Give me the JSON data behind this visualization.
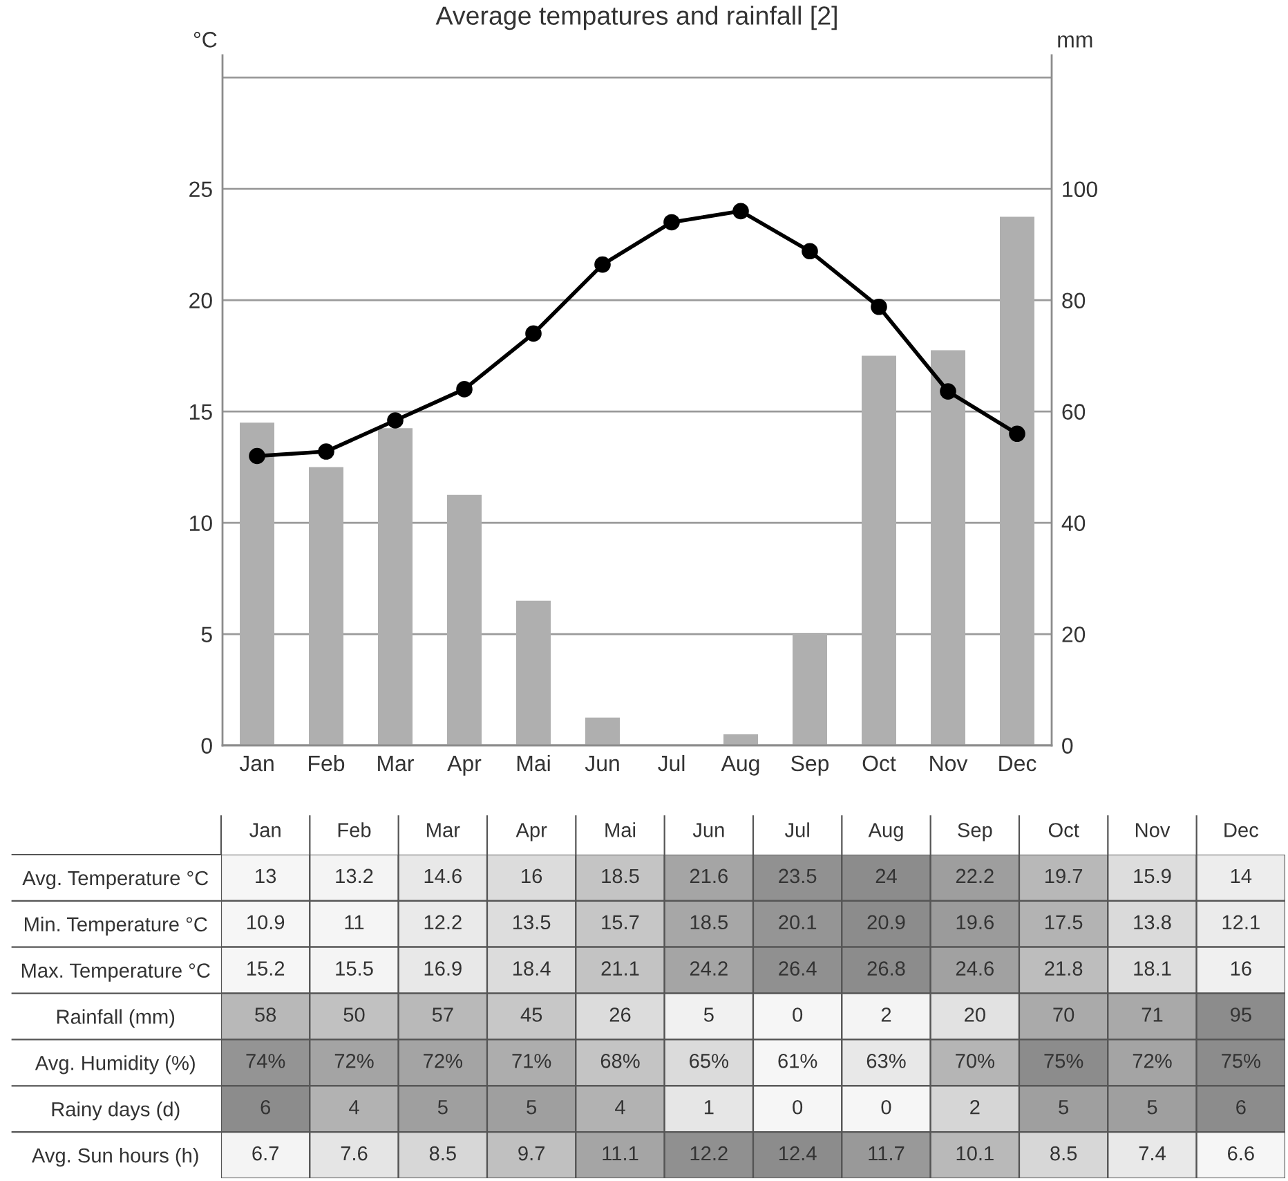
{
  "chart_data": [
    {
      "type": "bar",
      "title": "Average tempatures and rainfall [2]",
      "ylabel": "°C",
      "y2label": "mm",
      "categories": [
        "Jan",
        "Feb",
        "Mar",
        "Apr",
        "Mai",
        "Jun",
        "Jul",
        "Aug",
        "Sep",
        "Oct",
        "Nov",
        "Dec"
      ],
      "series": [
        {
          "type": "bar",
          "axis": "y2",
          "color": "#afafaf",
          "values": [
            58,
            50,
            57,
            45,
            26,
            5,
            0,
            2,
            20,
            70,
            71,
            95
          ]
        },
        {
          "type": "line",
          "color": "#000000",
          "marker": "circle",
          "line_style": "solid",
          "values": [
            13,
            13.2,
            14.6,
            16,
            18.5,
            21.6,
            23.5,
            24,
            22.2,
            19.7,
            15.9,
            14
          ]
        }
      ],
      "ylim": [
        0,
        31
      ],
      "yticks": [
        0,
        5,
        10,
        15,
        20,
        25,
        {
          "value": 30,
          "label": null
        }
      ],
      "y2lim": [
        0,
        124
      ],
      "y2ticks": [
        0,
        20,
        40,
        60,
        80,
        100
      ],
      "grid": "y"
    },
    {
      "type": "heatmap",
      "categories": [
        "Jan",
        "Feb",
        "Mar",
        "Apr",
        "Mai",
        "Jun",
        "Jul",
        "Aug",
        "Sep",
        "Oct",
        "Nov",
        "Dec"
      ],
      "y_categories": [
        "Avg. Temperature °C",
        "Min. Temperature °C",
        "Max. Temperature °C",
        "Rainfall (mm)",
        "Avg. Humidity (%)",
        "Rainy days (d)",
        "Avg. Sun hours (h)"
      ],
      "cells": [
        [
          13,
          13.2,
          14.6,
          16,
          18.5,
          21.6,
          23.5,
          24,
          22.2,
          19.7,
          15.9,
          14
        ],
        [
          10.9,
          11,
          12.2,
          13.5,
          15.7,
          18.5,
          20.1,
          20.9,
          19.6,
          17.5,
          13.8,
          12.1
        ],
        [
          15.2,
          15.5,
          16.9,
          18.4,
          21.1,
          24.2,
          26.4,
          26.8,
          24.6,
          21.8,
          18.1,
          16
        ],
        [
          58,
          50,
          57,
          45,
          26,
          5,
          0,
          2,
          20,
          70,
          71,
          95
        ],
        [
          74,
          72,
          72,
          71,
          68,
          65,
          61,
          63,
          70,
          75,
          72,
          75
        ],
        [
          6,
          4,
          5,
          5,
          4,
          1,
          0,
          0,
          2,
          5,
          5,
          6
        ],
        [
          6.7,
          7.6,
          8.5,
          9.7,
          11.1,
          12.2,
          12.4,
          11.7,
          10.1,
          8.5,
          7.4,
          6.6
        ]
      ],
      "cell_labels": [
        [
          "13",
          "13.2",
          "14.6",
          "16",
          "18.5",
          "21.6",
          "23.5",
          "24",
          "22.2",
          "19.7",
          "15.9",
          "14"
        ],
        [
          "10.9",
          "11",
          "12.2",
          "13.5",
          "15.7",
          "18.5",
          "20.1",
          "20.9",
          "19.6",
          "17.5",
          "13.8",
          "12.1"
        ],
        [
          "15.2",
          "15.5",
          "16.9",
          "18.4",
          "21.1",
          "24.2",
          "26.4",
          "26.8",
          "24.6",
          "21.8",
          "18.1",
          "16"
        ],
        [
          "58",
          "50",
          "57",
          "45",
          "26",
          "5",
          "0",
          "2",
          "20",
          "70",
          "71",
          "95"
        ],
        [
          "74%",
          "72%",
          "72%",
          "71%",
          "68%",
          "65%",
          "61%",
          "63%",
          "70%",
          "75%",
          "72%",
          "75%"
        ],
        [
          "6",
          "4",
          "5",
          "5",
          "4",
          "1",
          "0",
          "0",
          "2",
          "5",
          "5",
          "6"
        ],
        [
          "6.7",
          "7.6",
          "8.5",
          "9.7",
          "11.1",
          "12.2",
          "12.4",
          "11.7",
          "10.1",
          "8.5",
          "7.4",
          "6.6"
        ]
      ]
    }
  ]
}
